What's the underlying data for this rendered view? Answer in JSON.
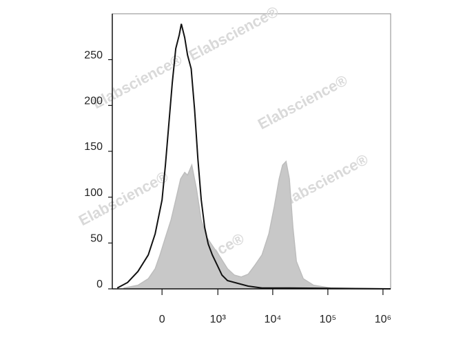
{
  "chart_data": {
    "type": "line",
    "xscale": "biexponential",
    "xlim": [
      -770,
      1377000
    ],
    "xticks": [
      0,
      {
        "value": 1000,
        "label": "10³"
      },
      {
        "value": 10000,
        "label": "10⁴"
      },
      {
        "value": 100000,
        "label": "10⁵"
      },
      {
        "value": 1000000,
        "label": "10⁶"
      }
    ],
    "ylim": [
      0,
      300
    ],
    "yticks": [
      0,
      50,
      100,
      150,
      200,
      250
    ],
    "watermark": "Elabscience®",
    "series": [
      {
        "color": "#bdbdbd",
        "fill": "#c8c8c8",
        "x": [
          -459,
          -232,
          -119,
          -57,
          -17,
          28,
          75,
          119,
          168,
          215,
          251,
          312,
          390,
          486,
          621,
          839,
          1123,
          1503,
          2007,
          2680,
          3580,
          4780,
          6370,
          8490,
          10680,
          13070,
          15090,
          17430,
          20000,
          23250,
          26850,
          35800,
          55100,
          113000,
          1377000
        ],
        "values": [
          1,
          4,
          11,
          22,
          37,
          56,
          75,
          97,
          120,
          127,
          124,
          135,
          109,
          75,
          56,
          45,
          34,
          22,
          15,
          13,
          16,
          26,
          37,
          60,
          90,
          120,
          135,
          139,
          120,
          67,
          30,
          11,
          4,
          1,
          0
        ]
      },
      {
        "color": "#111111",
        "x": [
          -621,
          -390,
          -232,
          -119,
          -57,
          0,
          28,
          57,
          87,
          119,
          154,
          176,
          215,
          251,
          302,
          357,
          416,
          486,
          566,
          660,
          790,
          970,
          1190,
          1503,
          2320,
          3580,
          6370,
          20000,
          1377000
        ],
        "values": [
          1,
          7,
          19,
          37,
          60,
          97,
          135,
          180,
          225,
          262,
          277,
          289,
          274,
          255,
          240,
          195,
          142,
          97,
          67,
          49,
          37,
          26,
          15,
          9,
          6,
          3,
          1,
          1,
          0
        ]
      }
    ]
  }
}
